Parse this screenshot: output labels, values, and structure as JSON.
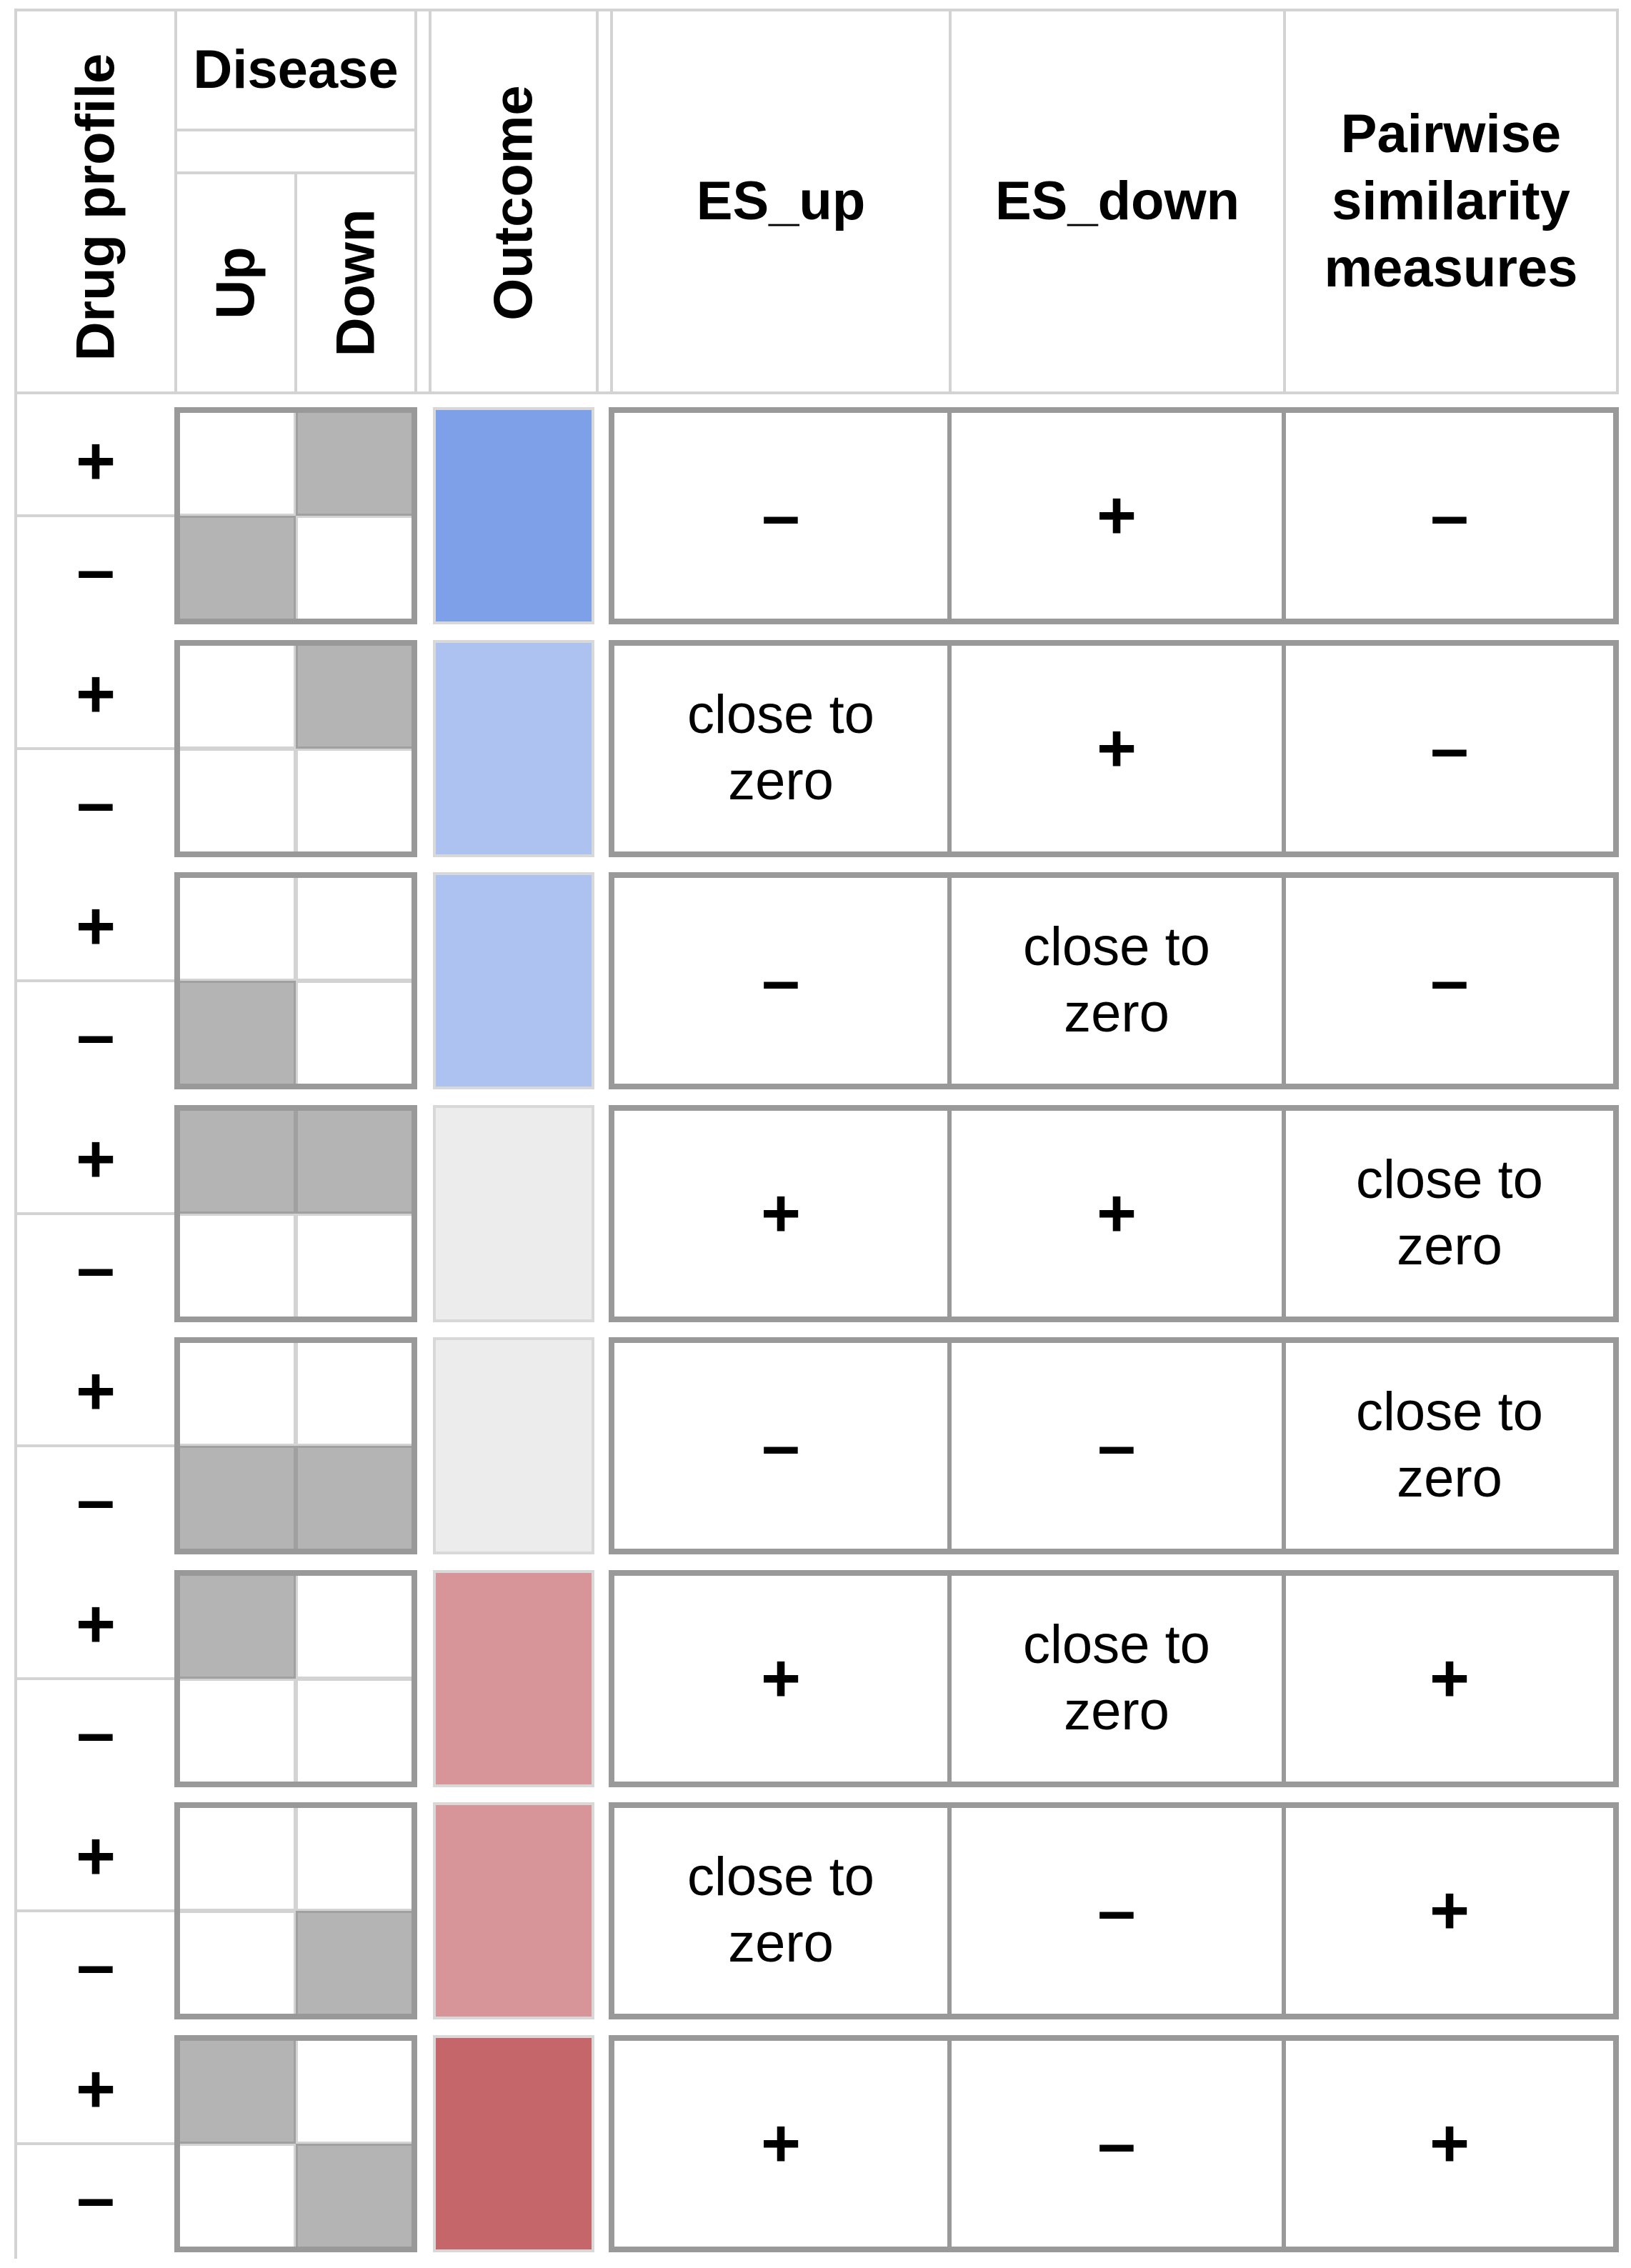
{
  "header": {
    "drug_profile": "Drug profile",
    "disease": "Disease",
    "up": "Up",
    "down": "Down",
    "outcome": "Outcome",
    "es_up": "ES_up",
    "es_down": "ES_down",
    "pairwise": "Pairwise\nsimilarity\nmeasures"
  },
  "colors": {
    "shaded": "#b4b4b4",
    "grid": "#d3d3d3",
    "block_border": "#999999"
  },
  "rows": [
    {
      "drug": [
        "+",
        "–"
      ],
      "disease": [
        [
          false,
          true
        ],
        [
          true,
          false
        ]
      ],
      "outcome_color": "#7ea0e8",
      "es_up": "–",
      "es_down": "+",
      "pairwise": "–"
    },
    {
      "drug": [
        "+",
        "–"
      ],
      "disease": [
        [
          false,
          true
        ],
        [
          false,
          false
        ]
      ],
      "outcome_color": "#adc2f1",
      "es_up": "close to\nzero",
      "es_down": "+",
      "pairwise": "–"
    },
    {
      "drug": [
        "+",
        "–"
      ],
      "disease": [
        [
          false,
          false
        ],
        [
          true,
          false
        ]
      ],
      "outcome_color": "#adc2f1",
      "es_up": "–",
      "es_down": "close to\nzero",
      "pairwise": "–"
    },
    {
      "drug": [
        "+",
        "–"
      ],
      "disease": [
        [
          true,
          true
        ],
        [
          false,
          false
        ]
      ],
      "outcome_color": "#ececec",
      "es_up": "+",
      "es_down": "+",
      "pairwise": "close to\nzero"
    },
    {
      "drug": [
        "+",
        "–"
      ],
      "disease": [
        [
          false,
          false
        ],
        [
          true,
          true
        ]
      ],
      "outcome_color": "#ececec",
      "es_up": "–",
      "es_down": "–",
      "pairwise": "close to\nzero"
    },
    {
      "drug": [
        "+",
        "–"
      ],
      "disease": [
        [
          true,
          false
        ],
        [
          false,
          false
        ]
      ],
      "outcome_color": "#d79599",
      "es_up": "+",
      "es_down": "close to\nzero",
      "pairwise": "+"
    },
    {
      "drug": [
        "+",
        "–"
      ],
      "disease": [
        [
          false,
          false
        ],
        [
          false,
          true
        ]
      ],
      "outcome_color": "#d79599",
      "es_up": "close to\nzero",
      "es_down": "–",
      "pairwise": "+"
    },
    {
      "drug": [
        "+",
        "–"
      ],
      "disease": [
        [
          true,
          false
        ],
        [
          false,
          true
        ]
      ],
      "outcome_color": "#c5666a",
      "es_up": "+",
      "es_down": "–",
      "pairwise": "+"
    }
  ]
}
